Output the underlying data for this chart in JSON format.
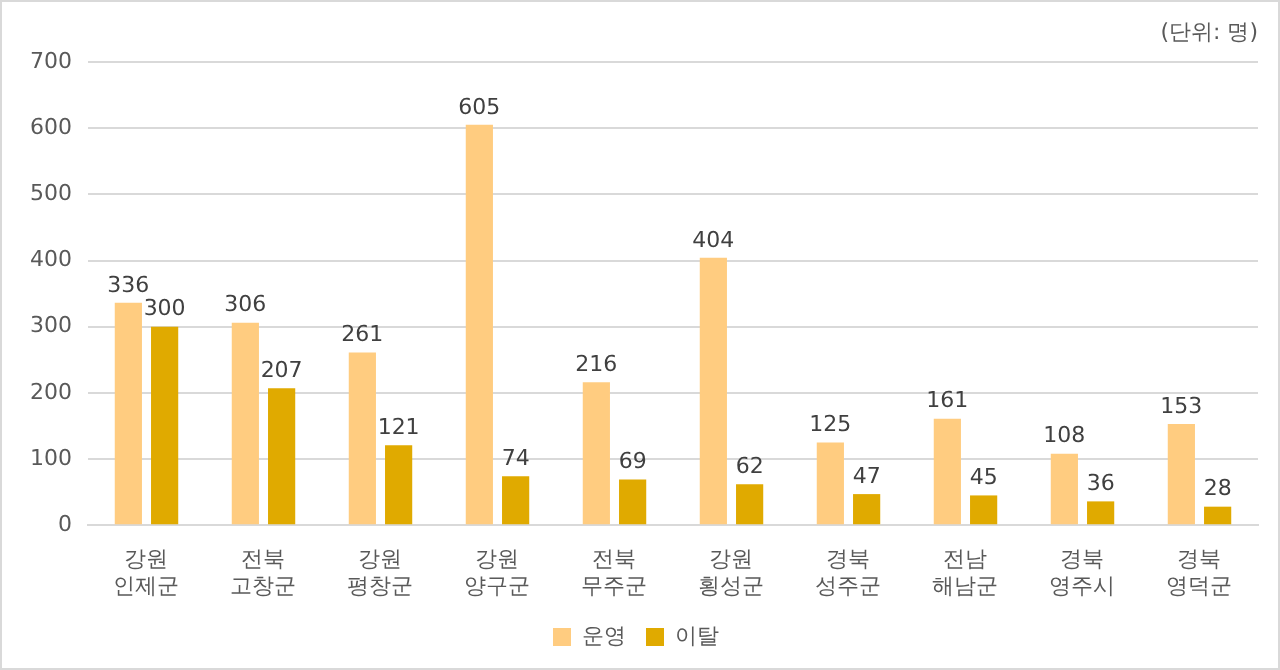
{
  "chart_data": {
    "type": "bar",
    "categories": [
      "강원\n인제군",
      "전북\n고창군",
      "강원\n평창군",
      "강원\n양구군",
      "전북\n무주군",
      "강원\n횡성군",
      "경북\n성주군",
      "전남\n해남군",
      "경북\n영주시",
      "경북\n영덕군"
    ],
    "series": [
      {
        "name": "운영",
        "color": "#ffcc80",
        "values": [
          336,
          306,
          261,
          605,
          216,
          404,
          125,
          161,
          108,
          153
        ]
      },
      {
        "name": "이탈",
        "color": "#e0aa00",
        "values": [
          300,
          207,
          121,
          74,
          69,
          62,
          47,
          45,
          36,
          28
        ]
      }
    ],
    "ylim": [
      0,
      700
    ],
    "yticks": [
      0,
      100,
      200,
      300,
      400,
      500,
      600,
      700
    ],
    "grid": "y",
    "legend": "bottom",
    "data_labels": true,
    "annotations": [
      "(단위: 명)"
    ]
  }
}
